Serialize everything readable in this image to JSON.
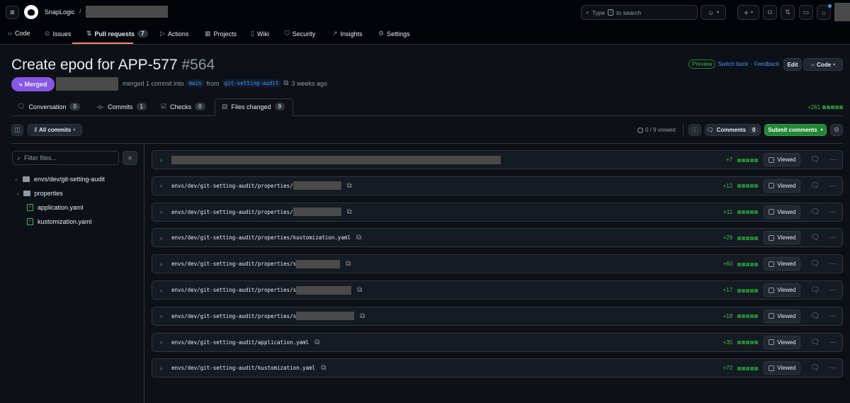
{
  "header": {
    "org": "SnapLogic",
    "separator": "/",
    "search_placeholder": "Type / to search",
    "search_prefix": "Type",
    "search_key": "/",
    "search_suffix": "to search"
  },
  "repo_nav": [
    {
      "label": "Code",
      "icon": "code-icon"
    },
    {
      "label": "Issues",
      "icon": "issue-icon"
    },
    {
      "label": "Pull requests",
      "icon": "pull-request-icon",
      "count": "7",
      "active": true
    },
    {
      "label": "Actions",
      "icon": "play-icon"
    },
    {
      "label": "Projects",
      "icon": "table-icon"
    },
    {
      "label": "Wiki",
      "icon": "book-icon"
    },
    {
      "label": "Security",
      "icon": "shield-icon"
    },
    {
      "label": "Insights",
      "icon": "graph-icon"
    },
    {
      "label": "Settings",
      "icon": "gear-icon"
    }
  ],
  "pr": {
    "title": "Create epod for APP-577",
    "number": "#564",
    "state": "Merged",
    "meta": "merged 1 commit into",
    "base": "main",
    "from": "from",
    "head": "git-setting-audit",
    "time": "3 weeks ago"
  },
  "pr_actions": {
    "preview": "Preview",
    "switch_back": "Switch back",
    "dot": "·",
    "feedback": "Feedback",
    "edit": "Edit",
    "code": "Code"
  },
  "tabs": [
    {
      "label": "Conversation",
      "count": "0"
    },
    {
      "label": "Commits",
      "count": "1"
    },
    {
      "label": "Checks",
      "count": "0"
    },
    {
      "label": "Files changed",
      "count": "9",
      "active": true
    }
  ],
  "total_additions": "+261",
  "toolbar": {
    "all_commits": "All commits",
    "viewed": "0 / 9 viewed",
    "comments": "Comments",
    "comments_count": "0",
    "submit": "Submit comments"
  },
  "sidebar": {
    "filter_placeholder": "Filter files...",
    "tree": [
      {
        "label": "envs/dev/git-setting-audit",
        "type": "folder",
        "expanded": true
      },
      {
        "label": "properties",
        "type": "folder",
        "expanded": false
      },
      {
        "label": "application.yaml",
        "type": "file-added"
      },
      {
        "label": "kustomization.yaml",
        "type": "file-added"
      }
    ]
  },
  "files": [
    {
      "path": "",
      "additions": "+7"
    },
    {
      "path": "envs/dev/git-setting-audit/properties/",
      "additions": "+12"
    },
    {
      "path": "envs/dev/git-setting-audit/properties/",
      "additions": "+11"
    },
    {
      "path": "envs/dev/git-setting-audit/properties/kustomization.yaml",
      "additions": "+29"
    },
    {
      "path": "envs/dev/git-setting-audit/properties/s",
      "additions": "+60"
    },
    {
      "path": "envs/dev/git-setting-audit/properties/s",
      "additions": "+17"
    },
    {
      "path": "envs/dev/git-setting-audit/properties/s",
      "additions": "+18"
    },
    {
      "path": "envs/dev/git-setting-audit/application.yaml",
      "additions": "+35"
    },
    {
      "path": "envs/dev/git-setting-audit/kustomization.yaml",
      "additions": "+72"
    }
  ],
  "viewed_label": "Viewed",
  "colors": {
    "merged": "#8957e5",
    "accent_green": "#238636",
    "addition": "#3fb950",
    "link": "#4493f8",
    "bg": "#0d1117",
    "header_bg": "#010409"
  }
}
